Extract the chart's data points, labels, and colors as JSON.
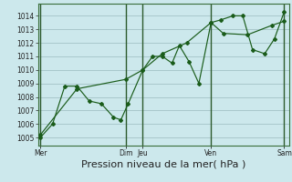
{
  "bg_color": "#cce8ec",
  "grid_color": "#a8c8cc",
  "line_color": "#1a5c1a",
  "xlabel": "Pression niveau de la mer( hPa )",
  "xlabel_fontsize": 8,
  "yticks": [
    1005,
    1006,
    1007,
    1008,
    1009,
    1010,
    1011,
    1012,
    1013,
    1014
  ],
  "ylim": [
    1004.4,
    1014.9
  ],
  "xlim": [
    -0.1,
    10.2
  ],
  "xtick_positions": [
    0,
    3.5,
    4.2,
    7.0,
    10.0
  ],
  "xtick_labels": [
    "Mer",
    "Dim",
    "Jeu",
    "Ven",
    "Sam"
  ],
  "vline_positions": [
    0,
    3.5,
    4.2,
    7.0,
    10.0
  ],
  "series1_x": [
    0.0,
    0.5,
    1.0,
    1.5,
    2.0,
    2.5,
    3.0,
    3.3,
    3.6,
    4.2,
    4.6,
    5.0,
    5.4,
    5.7,
    6.1,
    6.5,
    7.0,
    7.4,
    7.9,
    8.3,
    8.7,
    9.2,
    9.6,
    10.0
  ],
  "series1_y": [
    1005.0,
    1006.0,
    1008.8,
    1008.8,
    1007.7,
    1007.5,
    1006.5,
    1006.3,
    1007.5,
    1010.0,
    1011.0,
    1011.0,
    1010.5,
    1011.8,
    1010.6,
    1009.0,
    1013.5,
    1013.7,
    1014.0,
    1014.0,
    1011.5,
    1011.2,
    1012.3,
    1014.3
  ],
  "series2_x": [
    0.0,
    1.5,
    3.5,
    4.2,
    5.0,
    6.0,
    7.0,
    7.5,
    8.5,
    9.5,
    10.0
  ],
  "series2_y": [
    1005.2,
    1008.6,
    1009.3,
    1010.0,
    1011.2,
    1012.0,
    1013.5,
    1012.7,
    1012.6,
    1013.3,
    1013.6
  ]
}
